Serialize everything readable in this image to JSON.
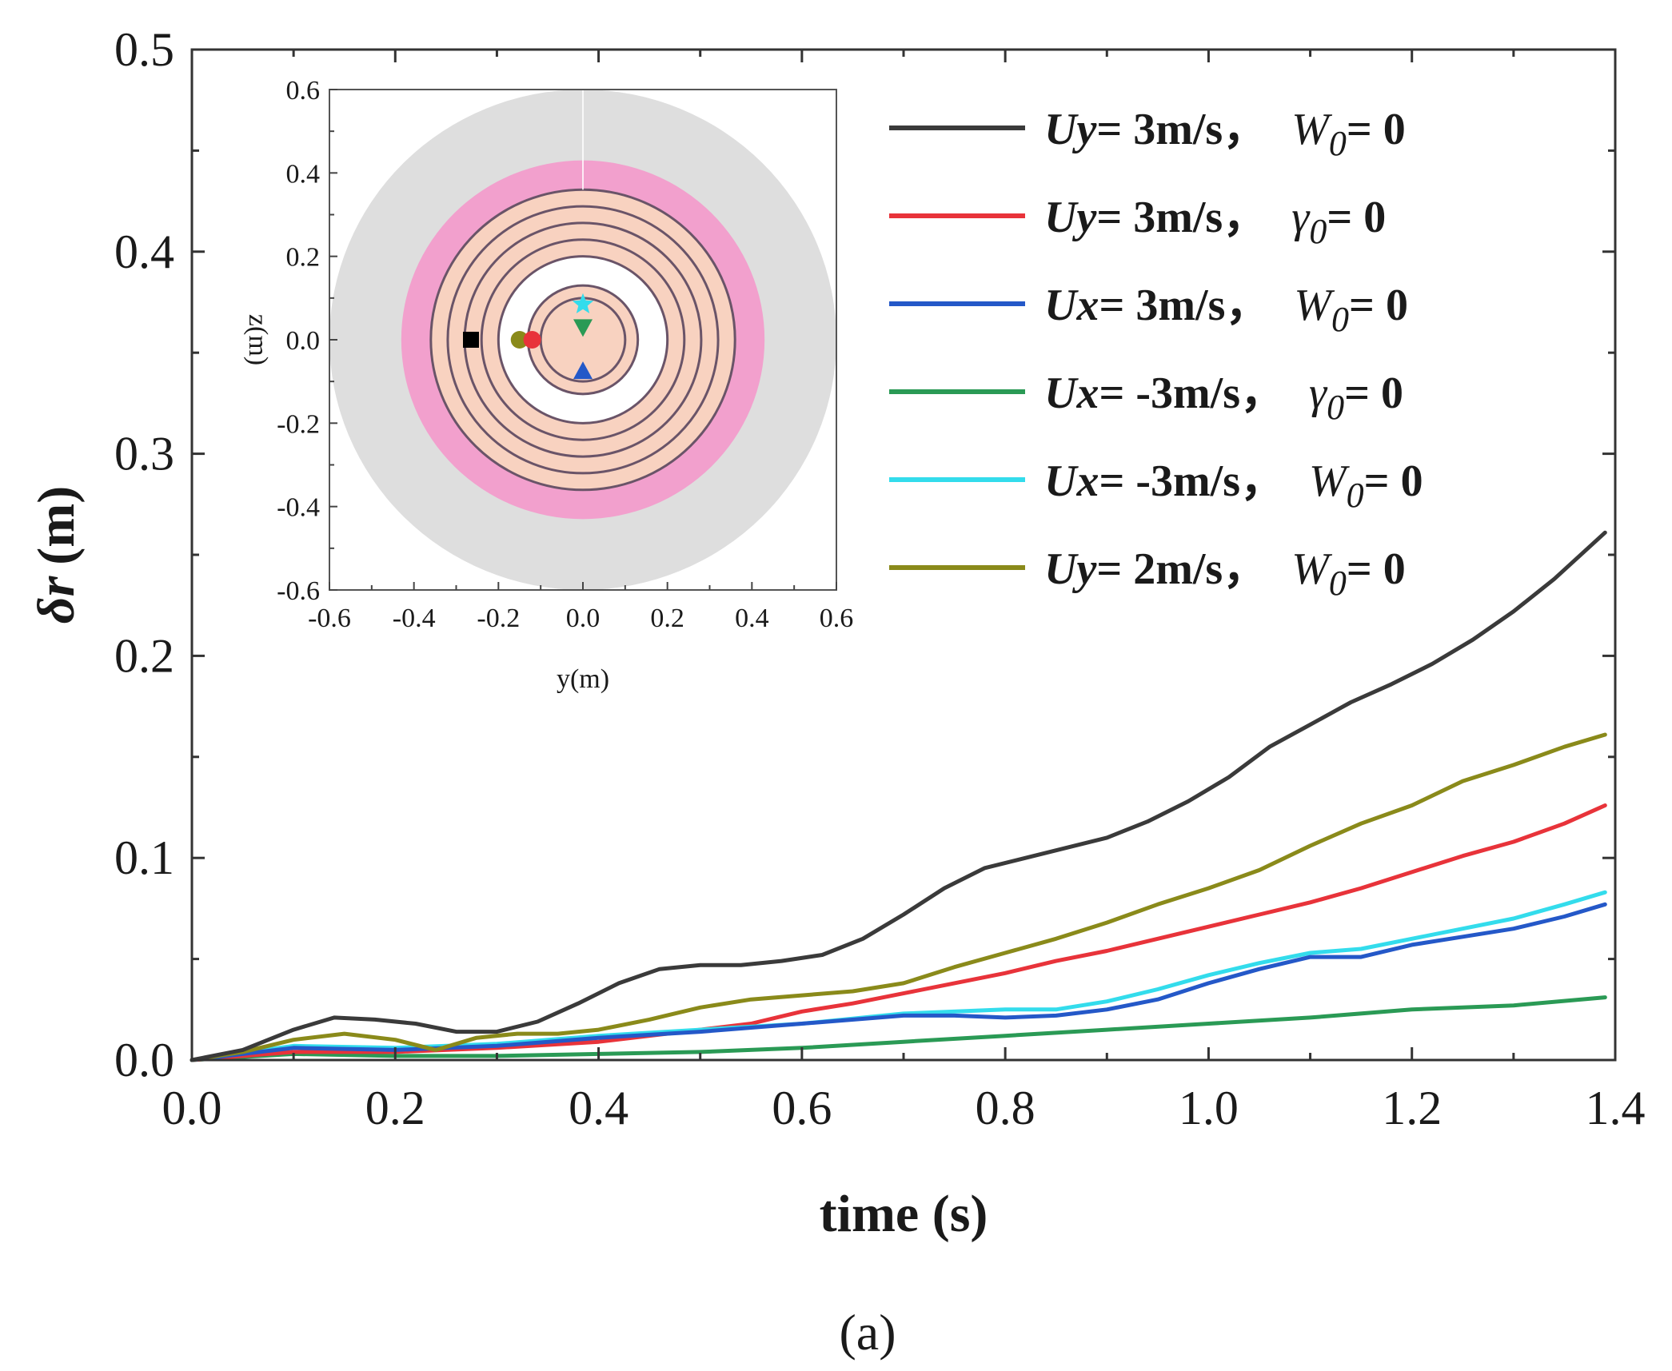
{
  "chart_data": [
    {
      "type": "line",
      "title": "",
      "xlabel": "time (s)",
      "ylabel_symbol": "δr",
      "ylabel_unit": "(m)",
      "xlim": [
        0.0,
        1.4
      ],
      "ylim": [
        0.0,
        0.5
      ],
      "xticks": [
        "0.0",
        "0.2",
        "0.4",
        "0.6",
        "0.8",
        "1.0",
        "1.2",
        "1.4"
      ],
      "yticks": [
        "0.0",
        "0.1",
        "0.2",
        "0.3",
        "0.4",
        "0.5"
      ],
      "grid": false,
      "legend_position": "top-right",
      "series": [
        {
          "name": "Uy= 3m/s, W0= 0",
          "legend_var": "U",
          "legend_sub": "y",
          "legend_val": "= 3m/s，",
          "legend_param": "W",
          "legend_param_sub": "0",
          "legend_tail": "= 0",
          "color": "#3a3a3a",
          "points": [
            [
              0.0,
              0.0
            ],
            [
              0.05,
              0.005
            ],
            [
              0.1,
              0.015
            ],
            [
              0.14,
              0.021
            ],
            [
              0.18,
              0.02
            ],
            [
              0.22,
              0.018
            ],
            [
              0.26,
              0.014
            ],
            [
              0.3,
              0.014
            ],
            [
              0.34,
              0.019
            ],
            [
              0.38,
              0.028
            ],
            [
              0.42,
              0.038
            ],
            [
              0.46,
              0.045
            ],
            [
              0.5,
              0.047
            ],
            [
              0.54,
              0.047
            ],
            [
              0.58,
              0.049
            ],
            [
              0.62,
              0.052
            ],
            [
              0.66,
              0.06
            ],
            [
              0.7,
              0.072
            ],
            [
              0.74,
              0.085
            ],
            [
              0.78,
              0.095
            ],
            [
              0.82,
              0.1
            ],
            [
              0.86,
              0.105
            ],
            [
              0.9,
              0.11
            ],
            [
              0.94,
              0.118
            ],
            [
              0.98,
              0.128
            ],
            [
              1.02,
              0.14
            ],
            [
              1.06,
              0.155
            ],
            [
              1.1,
              0.166
            ],
            [
              1.14,
              0.177
            ],
            [
              1.18,
              0.186
            ],
            [
              1.22,
              0.196
            ],
            [
              1.26,
              0.208
            ],
            [
              1.3,
              0.222
            ],
            [
              1.34,
              0.238
            ],
            [
              1.39,
              0.261
            ]
          ]
        },
        {
          "name": "Uy= 3m/s, γ0= 0",
          "legend_var": "U",
          "legend_sub": "y",
          "legend_val": "= 3m/s，",
          "legend_param": "γ",
          "legend_param_sub": "0",
          "legend_tail": "= 0",
          "color": "#e8333a",
          "points": [
            [
              0.0,
              0.0
            ],
            [
              0.1,
              0.004
            ],
            [
              0.2,
              0.004
            ],
            [
              0.3,
              0.006
            ],
            [
              0.4,
              0.009
            ],
            [
              0.5,
              0.015
            ],
            [
              0.55,
              0.018
            ],
            [
              0.6,
              0.024
            ],
            [
              0.65,
              0.028
            ],
            [
              0.7,
              0.033
            ],
            [
              0.75,
              0.038
            ],
            [
              0.8,
              0.043
            ],
            [
              0.85,
              0.049
            ],
            [
              0.9,
              0.054
            ],
            [
              0.95,
              0.06
            ],
            [
              1.0,
              0.066
            ],
            [
              1.05,
              0.072
            ],
            [
              1.1,
              0.078
            ],
            [
              1.15,
              0.085
            ],
            [
              1.2,
              0.093
            ],
            [
              1.25,
              0.101
            ],
            [
              1.3,
              0.108
            ],
            [
              1.35,
              0.117
            ],
            [
              1.39,
              0.126
            ]
          ]
        },
        {
          "name": "Ux= 3m/s, W0= 0",
          "legend_var": "U",
          "legend_sub": "x",
          "legend_val": "= 3m/s，",
          "legend_param": "W",
          "legend_param_sub": "0",
          "legend_tail": "= 0",
          "color": "#2458c8",
          "points": [
            [
              0.0,
              0.0
            ],
            [
              0.1,
              0.006
            ],
            [
              0.2,
              0.005
            ],
            [
              0.3,
              0.007
            ],
            [
              0.4,
              0.011
            ],
            [
              0.5,
              0.014
            ],
            [
              0.6,
              0.018
            ],
            [
              0.7,
              0.022
            ],
            [
              0.75,
              0.022
            ],
            [
              0.8,
              0.021
            ],
            [
              0.85,
              0.022
            ],
            [
              0.9,
              0.025
            ],
            [
              0.95,
              0.03
            ],
            [
              1.0,
              0.038
            ],
            [
              1.05,
              0.045
            ],
            [
              1.1,
              0.051
            ],
            [
              1.15,
              0.051
            ],
            [
              1.2,
              0.057
            ],
            [
              1.25,
              0.061
            ],
            [
              1.3,
              0.065
            ],
            [
              1.35,
              0.071
            ],
            [
              1.39,
              0.077
            ]
          ]
        },
        {
          "name": "Ux= -3m/s, γ0= 0",
          "legend_var": "U",
          "legend_sub": "x",
          "legend_val": "= -3m/s，",
          "legend_param": "γ",
          "legend_param_sub": "0",
          "legend_tail": "= 0",
          "color": "#2a9a55",
          "points": [
            [
              0.0,
              0.0
            ],
            [
              0.1,
              0.003
            ],
            [
              0.2,
              0.002
            ],
            [
              0.3,
              0.002
            ],
            [
              0.4,
              0.003
            ],
            [
              0.5,
              0.004
            ],
            [
              0.6,
              0.006
            ],
            [
              0.7,
              0.009
            ],
            [
              0.8,
              0.012
            ],
            [
              0.9,
              0.015
            ],
            [
              1.0,
              0.018
            ],
            [
              1.1,
              0.021
            ],
            [
              1.2,
              0.025
            ],
            [
              1.3,
              0.027
            ],
            [
              1.39,
              0.031
            ]
          ]
        },
        {
          "name": "Ux= -3m/s, W0= 0",
          "legend_var": "U",
          "legend_sub": "x",
          "legend_val": "= -3m/s，",
          "legend_param": "W",
          "legend_param_sub": "0",
          "legend_tail": "= 0",
          "color": "#33dcec",
          "points": [
            [
              0.0,
              0.0
            ],
            [
              0.1,
              0.007
            ],
            [
              0.2,
              0.006
            ],
            [
              0.3,
              0.008
            ],
            [
              0.4,
              0.012
            ],
            [
              0.5,
              0.015
            ],
            [
              0.6,
              0.018
            ],
            [
              0.7,
              0.023
            ],
            [
              0.8,
              0.025
            ],
            [
              0.85,
              0.025
            ],
            [
              0.9,
              0.029
            ],
            [
              0.95,
              0.035
            ],
            [
              1.0,
              0.042
            ],
            [
              1.05,
              0.048
            ],
            [
              1.1,
              0.053
            ],
            [
              1.15,
              0.055
            ],
            [
              1.2,
              0.06
            ],
            [
              1.25,
              0.065
            ],
            [
              1.3,
              0.07
            ],
            [
              1.35,
              0.077
            ],
            [
              1.39,
              0.083
            ]
          ]
        },
        {
          "name": "Uy= 2m/s, W0= 0",
          "legend_var": "U",
          "legend_sub": "y",
          "legend_val": "= 2m/s，",
          "legend_param": "W",
          "legend_param_sub": "0",
          "legend_tail": "= 0",
          "color": "#8a8a1a",
          "points": [
            [
              0.0,
              0.0
            ],
            [
              0.05,
              0.004
            ],
            [
              0.1,
              0.01
            ],
            [
              0.15,
              0.013
            ],
            [
              0.2,
              0.01
            ],
            [
              0.24,
              0.005
            ],
            [
              0.28,
              0.011
            ],
            [
              0.32,
              0.013
            ],
            [
              0.36,
              0.013
            ],
            [
              0.4,
              0.015
            ],
            [
              0.45,
              0.02
            ],
            [
              0.5,
              0.026
            ],
            [
              0.55,
              0.03
            ],
            [
              0.6,
              0.032
            ],
            [
              0.65,
              0.034
            ],
            [
              0.7,
              0.038
            ],
            [
              0.75,
              0.046
            ],
            [
              0.8,
              0.053
            ],
            [
              0.85,
              0.06
            ],
            [
              0.9,
              0.068
            ],
            [
              0.95,
              0.077
            ],
            [
              1.0,
              0.085
            ],
            [
              1.05,
              0.094
            ],
            [
              1.1,
              0.106
            ],
            [
              1.15,
              0.117
            ],
            [
              1.2,
              0.126
            ],
            [
              1.25,
              0.138
            ],
            [
              1.3,
              0.146
            ],
            [
              1.35,
              0.155
            ],
            [
              1.39,
              0.161
            ]
          ]
        }
      ]
    },
    {
      "type": "scatter",
      "title": "",
      "xlabel": "y(m)",
      "ylabel": "z(m)",
      "xlim": [
        -0.6,
        0.6
      ],
      "ylim": [
        -0.6,
        0.6
      ],
      "xticks": [
        "-0.6",
        "-0.4",
        "-0.2",
        "0.0",
        "0.2",
        "0.4",
        "0.6"
      ],
      "yticks": [
        "-0.6",
        "-0.4",
        "-0.2",
        "0.0",
        "0.2",
        "0.4",
        "0.6"
      ],
      "background_rings": [
        {
          "radius": 0.6,
          "color": "#dedede"
        },
        {
          "radius": 0.43,
          "color": "#f2a0cd"
        },
        {
          "radius": 0.36,
          "color": "#f8d2c0"
        },
        {
          "radius": 0.13,
          "color": "#f8d2c0"
        }
      ],
      "white_bands": [
        [
          0.13,
          0.2
        ]
      ],
      "orbit_circles": [
        0.1,
        0.13,
        0.2,
        0.24,
        0.28,
        0.32,
        0.36
      ],
      "orbit_color": "#6a5468",
      "markers": [
        {
          "shape": "square",
          "y": -0.265,
          "z": 0.0,
          "color": "#000000"
        },
        {
          "shape": "circle",
          "y": -0.15,
          "z": 0.0,
          "color": "#8a8a1a"
        },
        {
          "shape": "circle",
          "y": -0.12,
          "z": 0.0,
          "color": "#e8333a"
        },
        {
          "shape": "triangle-up",
          "y": 0.0,
          "z": -0.075,
          "color": "#2458c8"
        },
        {
          "shape": "triangle-down",
          "y": 0.0,
          "z": 0.03,
          "color": "#2a9a55"
        },
        {
          "shape": "star",
          "y": 0.0,
          "z": 0.085,
          "color": "#33dcec"
        }
      ]
    }
  ],
  "caption": "(a)"
}
